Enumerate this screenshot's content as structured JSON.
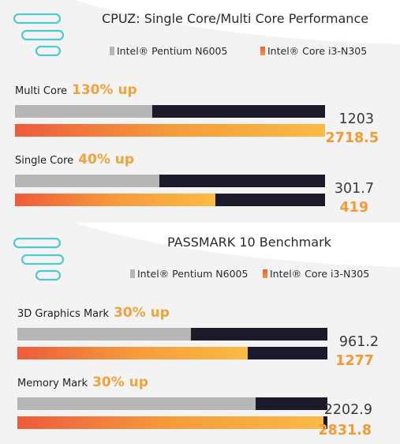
{
  "colors": {
    "series_a": "#b6b6b6",
    "series_b": "#ee5b3c",
    "accent": "#f0a33a",
    "track": "#1c1b2b",
    "logo_lines": "#4ec9cf"
  },
  "chart_data": [
    {
      "type": "bar",
      "title": "CPUZ: Single Core/Multi Core Performance",
      "legend": {
        "placement": "top-center",
        "entries": [
          "Intel® Pentium N6005",
          "Intel® Core i3-N305"
        ]
      },
      "categories": [
        "Multi Core",
        "Single Core"
      ],
      "annotations": [
        "130% up",
        "40% up"
      ],
      "series": [
        {
          "name": "Intel® Pentium N6005",
          "values": [
            1203,
            301.7
          ]
        },
        {
          "name": "Intel® Core i3-N305",
          "values": [
            2718.5,
            419
          ]
        }
      ],
      "value_labels": [
        [
          "1203",
          "2718.5"
        ],
        [
          "301.7",
          "419"
        ]
      ],
      "xlim": [
        0,
        2718.5
      ]
    },
    {
      "type": "bar",
      "title": "PASSMARK 10 Benchmark",
      "legend": {
        "placement": "top-center",
        "entries": [
          "Intel® Pentium N6005",
          "Intel® Core i3-N305"
        ]
      },
      "categories": [
        "3D Graphics Mark",
        "Memory Mark"
      ],
      "annotations": [
        "30% up",
        "30% up"
      ],
      "series": [
        {
          "name": "Intel® Pentium N6005",
          "values": [
            961.2,
            2202.9
          ]
        },
        {
          "name": "Intel® Core i3-N305",
          "values": [
            1277,
            2831.8
          ]
        }
      ],
      "value_labels": [
        [
          "961.2",
          "1277"
        ],
        [
          "2202.9",
          "2831.8"
        ]
      ]
    }
  ]
}
